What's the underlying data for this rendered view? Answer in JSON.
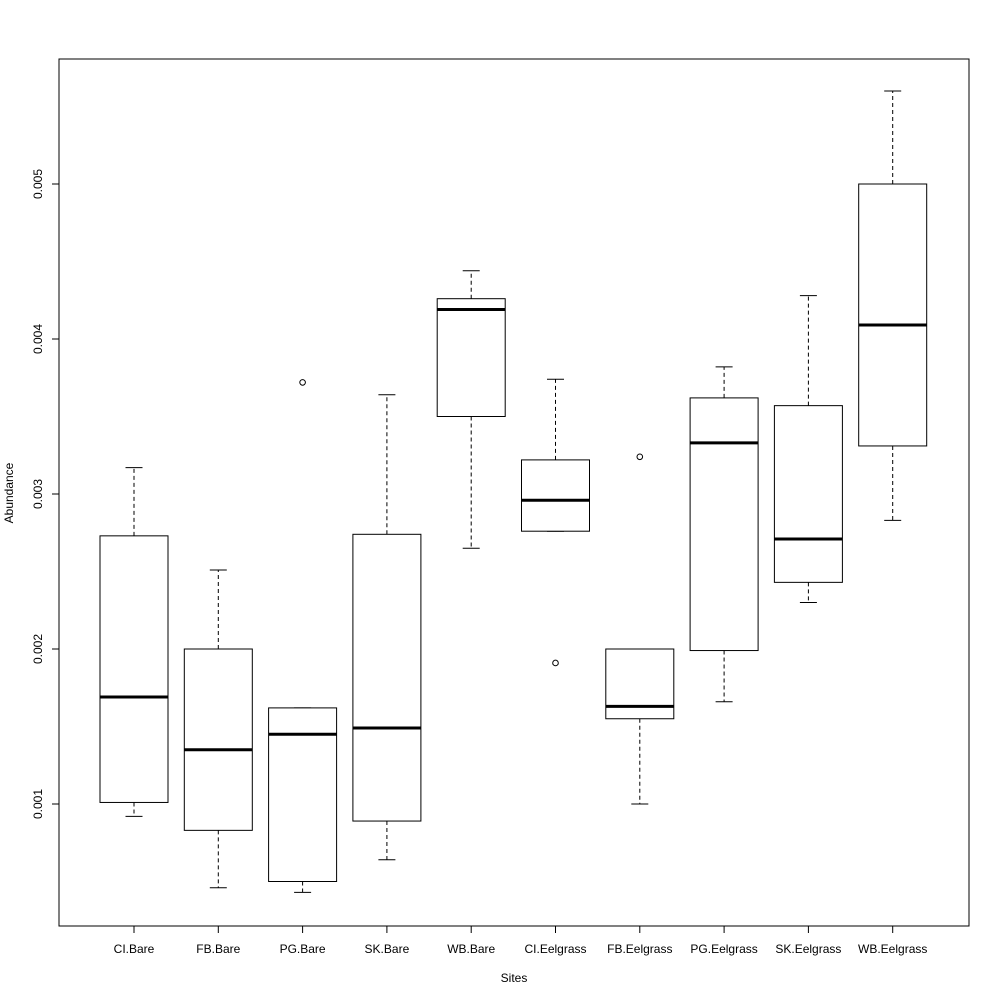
{
  "chart_data": {
    "type": "boxplot",
    "xlabel": "Sites",
    "ylabel": "Abundance",
    "ylim": [
      0.00035,
      0.0059
    ],
    "yticks": [
      0.001,
      0.002,
      0.003,
      0.004,
      0.005
    ],
    "ytick_labels": [
      "0.001",
      "0.002",
      "0.003",
      "0.004",
      "0.005"
    ],
    "grid": false,
    "categories": [
      "CI.Bare",
      "FB.Bare",
      "PG.Bare",
      "SK.Bare",
      "WB.Bare",
      "CI.Eelgrass",
      "FB.Eelgrass",
      "PG.Eelgrass",
      "SK.Eelgrass",
      "WB.Eelgrass"
    ],
    "boxes": [
      {
        "whisker_low": 0.00092,
        "q1": 0.00101,
        "median": 0.00169,
        "q3": 0.00273,
        "whisker_high": 0.00317,
        "outliers": []
      },
      {
        "whisker_low": 0.00046,
        "q1": 0.00083,
        "median": 0.00135,
        "q3": 0.002,
        "whisker_high": 0.00251,
        "outliers": []
      },
      {
        "whisker_low": 0.00043,
        "q1": 0.0005,
        "median": 0.00145,
        "q3": 0.00162,
        "whisker_high": 0.00162,
        "outliers": [
          0.00372
        ]
      },
      {
        "whisker_low": 0.00064,
        "q1": 0.00089,
        "median": 0.00149,
        "q3": 0.00274,
        "whisker_high": 0.00364,
        "outliers": []
      },
      {
        "whisker_low": 0.00265,
        "q1": 0.0035,
        "median": 0.00419,
        "q3": 0.00426,
        "whisker_high": 0.00444,
        "outliers": []
      },
      {
        "whisker_low": 0.00276,
        "q1": 0.00276,
        "median": 0.00296,
        "q3": 0.00322,
        "whisker_high": 0.00374,
        "outliers": [
          0.00191
        ]
      },
      {
        "whisker_low": 0.001,
        "q1": 0.00155,
        "median": 0.00163,
        "q3": 0.002,
        "whisker_high": 0.002,
        "outliers": [
          0.00324
        ]
      },
      {
        "whisker_low": 0.00166,
        "q1": 0.00199,
        "median": 0.00333,
        "q3": 0.00362,
        "whisker_high": 0.00382,
        "outliers": []
      },
      {
        "whisker_low": 0.0023,
        "q1": 0.00243,
        "median": 0.00271,
        "q3": 0.00357,
        "whisker_high": 0.00428,
        "outliers": []
      },
      {
        "whisker_low": 0.00283,
        "q1": 0.00331,
        "median": 0.00409,
        "q3": 0.005,
        "whisker_high": 0.0056,
        "outliers": []
      }
    ]
  }
}
